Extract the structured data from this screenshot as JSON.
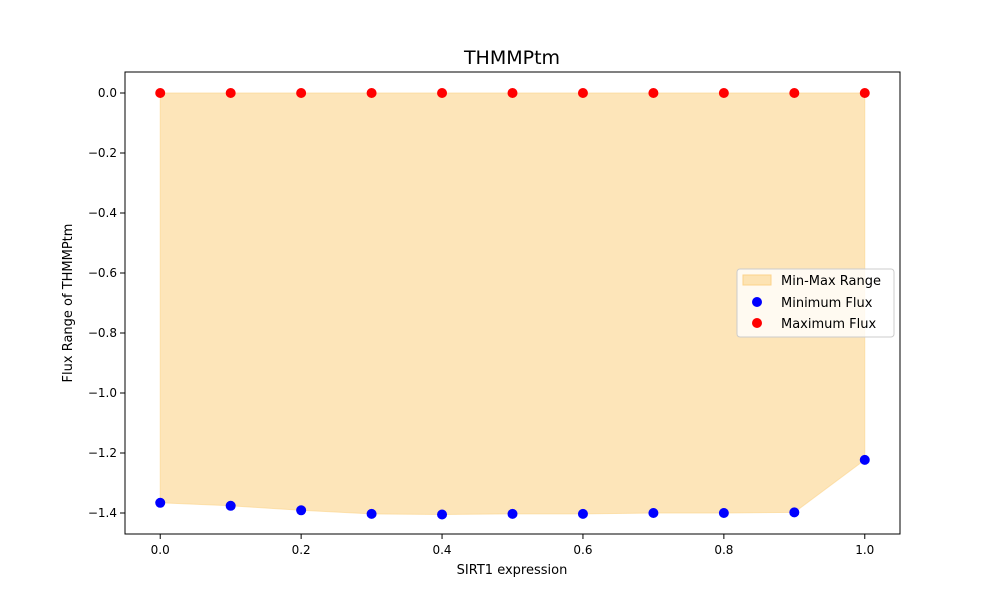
{
  "chart_data": {
    "type": "scatter",
    "title": "THMMPtm",
    "xlabel": "SIRT1 expression",
    "ylabel": "Flux Range of THMMPtm",
    "x": [
      0.0,
      0.1,
      0.2,
      0.3,
      0.4,
      0.5,
      0.6,
      0.7,
      0.8,
      0.9,
      1.0
    ],
    "xlim": [
      -0.05,
      1.05
    ],
    "ylim": [
      -1.47,
      0.07
    ],
    "xticks": [
      0.0,
      0.2,
      0.4,
      0.6,
      0.8,
      1.0
    ],
    "xtick_labels": [
      "0.0",
      "0.2",
      "0.4",
      "0.6",
      "0.8",
      "1.0"
    ],
    "yticks": [
      0.0,
      -0.2,
      -0.4,
      -0.6,
      -0.8,
      -1.0,
      -1.2,
      -1.4
    ],
    "ytick_labels": [
      "0.0",
      "−0.2",
      "−0.4",
      "−0.6",
      "−0.8",
      "−1.0",
      "−1.2",
      "−1.4"
    ],
    "grid": false,
    "legend_position": "right",
    "series": [
      {
        "name": "Min-Max Range",
        "kind": "area",
        "color": "#fcd38a"
      },
      {
        "name": "Minimum Flux",
        "kind": "scatter",
        "color": "#0000ff",
        "values": [
          -1.366,
          -1.376,
          -1.391,
          -1.403,
          -1.405,
          -1.403,
          -1.403,
          -1.4,
          -1.4,
          -1.398,
          -1.223
        ]
      },
      {
        "name": "Maximum Flux",
        "kind": "scatter",
        "color": "#ff0000",
        "values": [
          0.0,
          0.0,
          0.0,
          0.0,
          0.0,
          0.0,
          0.0,
          0.0,
          0.0,
          0.0,
          0.0
        ]
      }
    ]
  }
}
